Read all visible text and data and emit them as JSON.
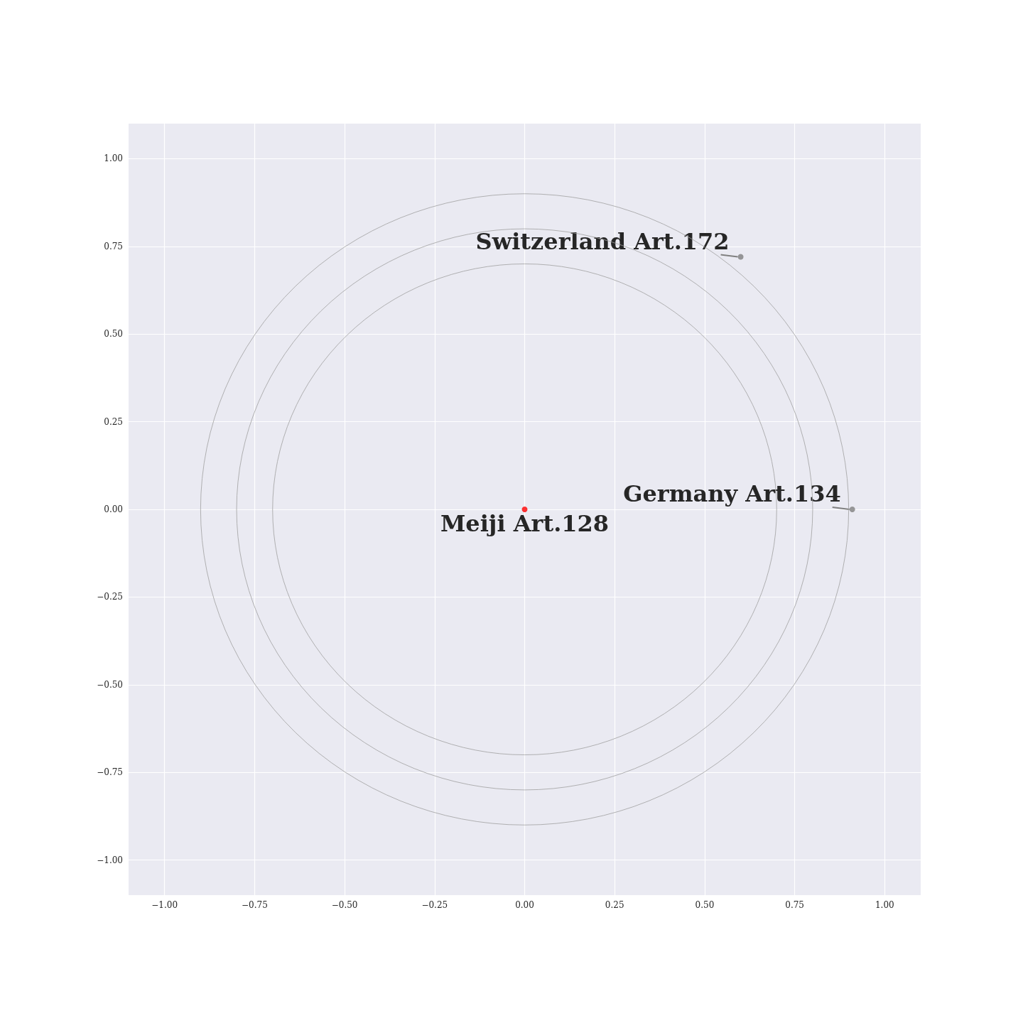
{
  "chart_data": {
    "type": "scatter",
    "xlim": [
      -1.1,
      1.1
    ],
    "ylim": [
      -1.1,
      1.1
    ],
    "xticks": [
      {
        "value": -1,
        "label": "−1.00"
      },
      {
        "value": -0.75,
        "label": "−0.75"
      },
      {
        "value": -0.5,
        "label": "−0.50"
      },
      {
        "value": -0.25,
        "label": "−0.25"
      },
      {
        "value": 0,
        "label": "0.00"
      },
      {
        "value": 0.25,
        "label": "0.25"
      },
      {
        "value": 0.5,
        "label": "0.50"
      },
      {
        "value": 0.75,
        "label": "0.75"
      },
      {
        "value": 1,
        "label": "1.00"
      }
    ],
    "yticks": [
      {
        "value": -1,
        "label": "−1.00"
      },
      {
        "value": -0.75,
        "label": "−0.75"
      },
      {
        "value": -0.5,
        "label": "−0.50"
      },
      {
        "value": -0.25,
        "label": "−0.25"
      },
      {
        "value": 0,
        "label": "0.00"
      },
      {
        "value": 0.25,
        "label": "0.25"
      },
      {
        "value": 0.5,
        "label": "0.50"
      },
      {
        "value": 0.75,
        "label": "0.75"
      },
      {
        "value": 1,
        "label": "1.00"
      }
    ],
    "grid": true,
    "marker": "circle",
    "series": [
      {
        "x": [
          0,
          0.6,
          0.91
        ],
        "values": [
          0,
          0.72,
          0
        ],
        "colors": [
          "#ff0000",
          "#808080",
          "#808080"
        ]
      }
    ],
    "annotations": [
      {
        "text": "Meiji Art.128",
        "x": 0,
        "y": 0
      },
      {
        "text": "Switzerland Art.172",
        "x": 0.6,
        "y": 0.72
      },
      {
        "text": "Germany Art.134",
        "x": 0.91,
        "y": 0
      }
    ]
  }
}
